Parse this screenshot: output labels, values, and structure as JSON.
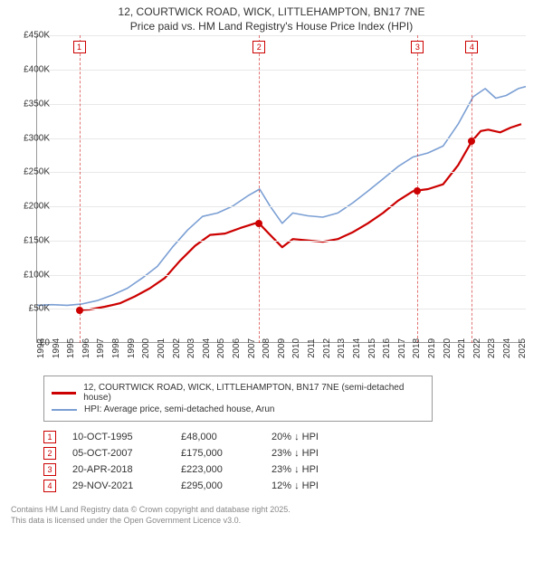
{
  "title_line1": "12, COURTWICK ROAD, WICK, LITTLEHAMPTON, BN17 7NE",
  "title_line2": "Price paid vs. HM Land Registry's House Price Index (HPI)",
  "chart": {
    "type": "line",
    "background_color": "#ffffff",
    "grid_color": "#e8e8e8",
    "axis_color": "#999999",
    "text_color": "#333333",
    "label_fontsize": 10,
    "x_years": [
      1993,
      1994,
      1995,
      1996,
      1997,
      1998,
      1999,
      2000,
      2001,
      2002,
      2003,
      2004,
      2005,
      2006,
      2007,
      2008,
      2009,
      2010,
      2011,
      2012,
      2013,
      2014,
      2015,
      2016,
      2017,
      2018,
      2019,
      2020,
      2021,
      2022,
      2023,
      2024,
      2025
    ],
    "xlim": [
      1993,
      2025.5
    ],
    "ylim": [
      0,
      450000
    ],
    "ytick_step": 50000,
    "ytick_labels": [
      "£0",
      "£50K",
      "£100K",
      "£150K",
      "£200K",
      "£250K",
      "£300K",
      "£350K",
      "£400K",
      "£450K"
    ],
    "series": [
      {
        "name": "property",
        "label": "12, COURTWICK ROAD, WICK, LITTLEHAMPTON, BN17 7NE (semi-detached house)",
        "color": "#cc0000",
        "line_width": 2.2,
        "points": [
          [
            1995.8,
            48000
          ],
          [
            1996.5,
            49000
          ],
          [
            1997.5,
            53000
          ],
          [
            1998.5,
            58000
          ],
          [
            1999.5,
            68000
          ],
          [
            2000.5,
            80000
          ],
          [
            2001.5,
            95000
          ],
          [
            2002.5,
            120000
          ],
          [
            2003.5,
            142000
          ],
          [
            2004.5,
            158000
          ],
          [
            2005.5,
            160000
          ],
          [
            2006.5,
            168000
          ],
          [
            2007.5,
            175000
          ],
          [
            2007.76,
            175000
          ],
          [
            2008.5,
            158000
          ],
          [
            2009.3,
            140000
          ],
          [
            2010.0,
            152000
          ],
          [
            2011.0,
            150000
          ],
          [
            2012.0,
            148000
          ],
          [
            2013.0,
            152000
          ],
          [
            2014.0,
            162000
          ],
          [
            2015.0,
            175000
          ],
          [
            2016.0,
            190000
          ],
          [
            2017.0,
            208000
          ],
          [
            2018.0,
            222000
          ],
          [
            2018.3,
            223000
          ],
          [
            2019.0,
            225000
          ],
          [
            2020.0,
            232000
          ],
          [
            2021.0,
            260000
          ],
          [
            2021.91,
            295000
          ],
          [
            2022.5,
            310000
          ],
          [
            2023.0,
            312000
          ],
          [
            2023.8,
            308000
          ],
          [
            2024.5,
            315000
          ],
          [
            2025.2,
            320000
          ]
        ]
      },
      {
        "name": "hpi",
        "label": "HPI: Average price, semi-detached house, Arun",
        "color": "#7b9fd4",
        "line_width": 1.6,
        "points": [
          [
            1993.0,
            55000
          ],
          [
            1994.0,
            56000
          ],
          [
            1995.0,
            55000
          ],
          [
            1996.0,
            57000
          ],
          [
            1997.0,
            62000
          ],
          [
            1998.0,
            70000
          ],
          [
            1999.0,
            80000
          ],
          [
            2000.0,
            95000
          ],
          [
            2001.0,
            112000
          ],
          [
            2002.0,
            140000
          ],
          [
            2003.0,
            165000
          ],
          [
            2004.0,
            185000
          ],
          [
            2005.0,
            190000
          ],
          [
            2006.0,
            200000
          ],
          [
            2007.0,
            215000
          ],
          [
            2007.8,
            225000
          ],
          [
            2008.5,
            200000
          ],
          [
            2009.3,
            175000
          ],
          [
            2010.0,
            190000
          ],
          [
            2011.0,
            186000
          ],
          [
            2012.0,
            184000
          ],
          [
            2013.0,
            190000
          ],
          [
            2014.0,
            205000
          ],
          [
            2015.0,
            222000
          ],
          [
            2016.0,
            240000
          ],
          [
            2017.0,
            258000
          ],
          [
            2018.0,
            272000
          ],
          [
            2019.0,
            278000
          ],
          [
            2020.0,
            288000
          ],
          [
            2021.0,
            320000
          ],
          [
            2022.0,
            360000
          ],
          [
            2022.8,
            372000
          ],
          [
            2023.5,
            358000
          ],
          [
            2024.2,
            362000
          ],
          [
            2025.0,
            372000
          ],
          [
            2025.5,
            375000
          ]
        ]
      }
    ],
    "markers": [
      {
        "n": "1",
        "year": 1995.8,
        "price": 48000
      },
      {
        "n": "2",
        "year": 2007.76,
        "price": 175000
      },
      {
        "n": "3",
        "year": 2018.3,
        "price": 223000
      },
      {
        "n": "4",
        "year": 2021.91,
        "price": 295000
      }
    ]
  },
  "legend": {
    "border_color": "#999999"
  },
  "table_rows": [
    {
      "n": "1",
      "date": "10-OCT-1995",
      "price": "£48,000",
      "pct": "20% ↓ HPI"
    },
    {
      "n": "2",
      "date": "05-OCT-2007",
      "price": "£175,000",
      "pct": "23% ↓ HPI"
    },
    {
      "n": "3",
      "date": "20-APR-2018",
      "price": "£223,000",
      "pct": "23% ↓ HPI"
    },
    {
      "n": "4",
      "date": "29-NOV-2021",
      "price": "£295,000",
      "pct": "12% ↓ HPI"
    }
  ],
  "footer_line1": "Contains HM Land Registry data © Crown copyright and database right 2025.",
  "footer_line2": "This data is licensed under the Open Government Licence v3.0."
}
